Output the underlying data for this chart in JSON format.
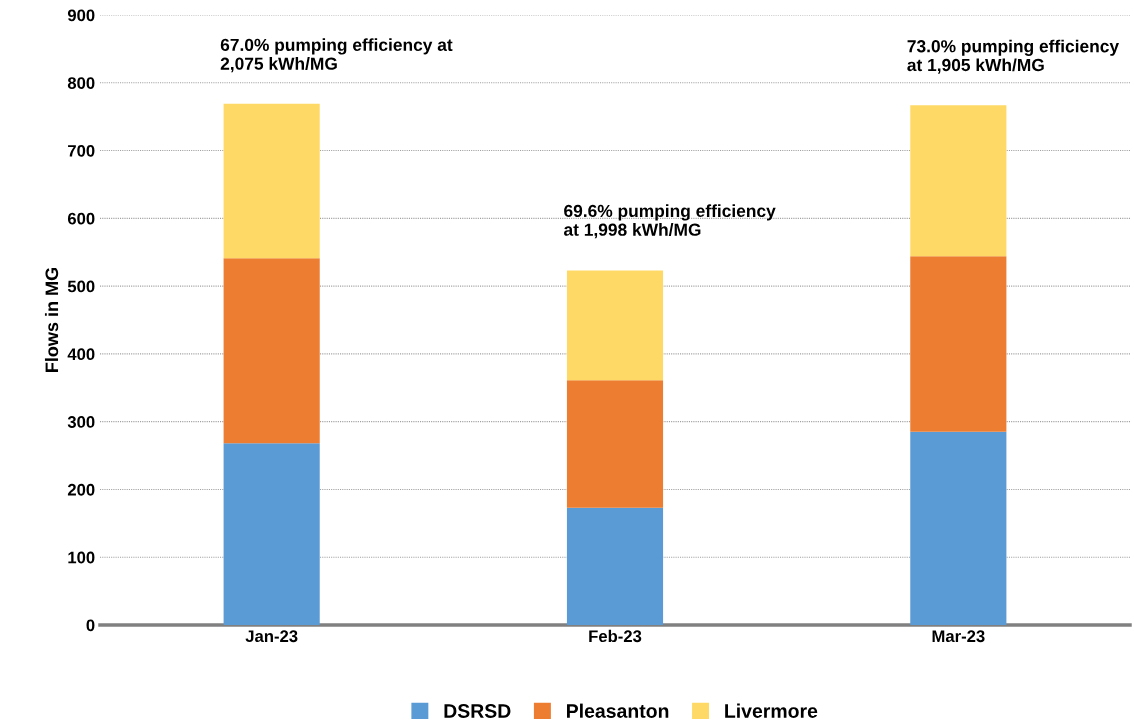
{
  "chart_data": {
    "type": "bar",
    "stacked": true,
    "ylabel": "Flows in MG",
    "categories": [
      "Jan-23",
      "Feb-23",
      "Mar-23"
    ],
    "series": [
      {
        "name": "DSRSD",
        "color": "#5b9bd5",
        "values": [
          268,
          173,
          285
        ]
      },
      {
        "name": "Pleasanton",
        "color": "#ed7d31",
        "values": [
          273,
          188,
          259
        ]
      },
      {
        "name": "Livermore",
        "color": "#ffd966",
        "values": [
          228,
          162,
          223
        ]
      }
    ],
    "ylim": [
      0,
      900
    ],
    "yticks": [
      0,
      100,
      200,
      300,
      400,
      500,
      600,
      700,
      800,
      900
    ],
    "grid": "y",
    "legend": "bottom",
    "annotations": [
      {
        "text": "67.0% pumping efficiency at\n2,075 kWh/MG",
        "x": "Jan-23",
        "y": 769
      },
      {
        "text": "69.6% pumping efficiency\nat 1,998 kWh/MG",
        "x": "Feb-23",
        "y": 524
      },
      {
        "text": "73.0% pumping efficiency\nat 1,905 kWh/MG",
        "x": "Mar-23",
        "y": 767
      }
    ]
  }
}
